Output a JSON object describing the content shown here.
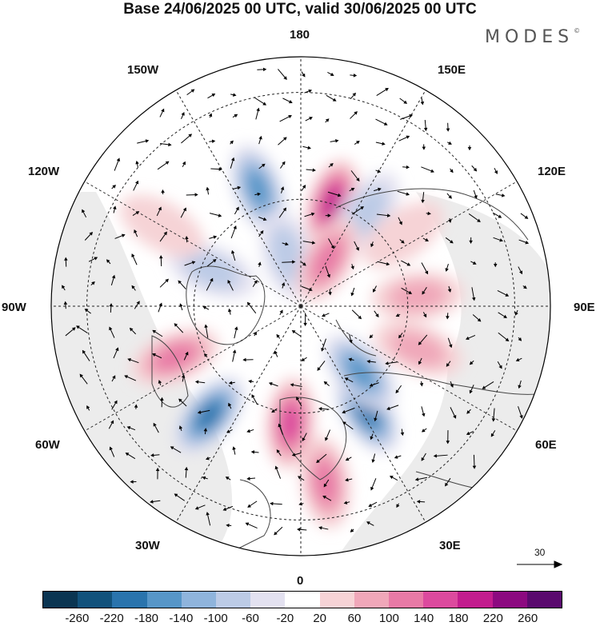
{
  "title": "Base 24/06/2025 00 UTC, valid 30/06/2025 00 UTC",
  "brand": "MODES",
  "brand_mark": "©",
  "lon_labels": {
    "l180": "180",
    "l150w": "150W",
    "l150e": "150E",
    "l120w": "120W",
    "l120e": "120E",
    "l90w": "90W",
    "l90e": "90E",
    "l60w": "60W",
    "l60e": "60E",
    "l30w": "30W",
    "l30e": "30E",
    "l0": "0"
  },
  "reference_vector": "30",
  "colorbar": {
    "colors": [
      "#0b3552",
      "#12527c",
      "#2a74ad",
      "#5796c8",
      "#8fb4dc",
      "#bccbe6",
      "#e3e1f0",
      "#ffffff",
      "#f6d3d6",
      "#f0a7b9",
      "#e87aa6",
      "#dc4a9e",
      "#c21d8e",
      "#8c0a80",
      "#5a0a6e"
    ],
    "ticks": [
      "-260",
      "-220",
      "-180",
      "-140",
      "-100",
      "-60",
      "-20",
      "20",
      "60",
      "100",
      "140",
      "180",
      "220",
      "260"
    ]
  },
  "map_data": {
    "projection": "north-polar-stereographic",
    "center_lon_bottom": 0,
    "anomalies": [
      {
        "lon": 163,
        "lat": 60,
        "value": 190
      },
      {
        "lon": -160,
        "lat": 55,
        "value": -150
      },
      {
        "lon": 145,
        "lat": 58,
        "value": -90
      },
      {
        "lon": -165,
        "lat": 75,
        "value": -70
      },
      {
        "lon": 150,
        "lat": 75,
        "value": 110
      },
      {
        "lon": -112,
        "lat": 63,
        "value": -70
      },
      {
        "lon": -68,
        "lat": 52,
        "value": 110
      },
      {
        "lon": -40,
        "lat": 50,
        "value": -190
      },
      {
        "lon": -5,
        "lat": 57,
        "value": 150
      },
      {
        "lon": 8,
        "lat": 40,
        "value": 130
      },
      {
        "lon": 32,
        "lat": 55,
        "value": -180
      },
      {
        "lon": 42,
        "lat": 65,
        "value": -170
      },
      {
        "lon": 70,
        "lat": 55,
        "value": 60
      },
      {
        "lon": 95,
        "lat": 57,
        "value": 60
      },
      {
        "lon": 125,
        "lat": 55,
        "value": 50
      },
      {
        "lon": -120,
        "lat": 45,
        "value": 50
      }
    ]
  }
}
